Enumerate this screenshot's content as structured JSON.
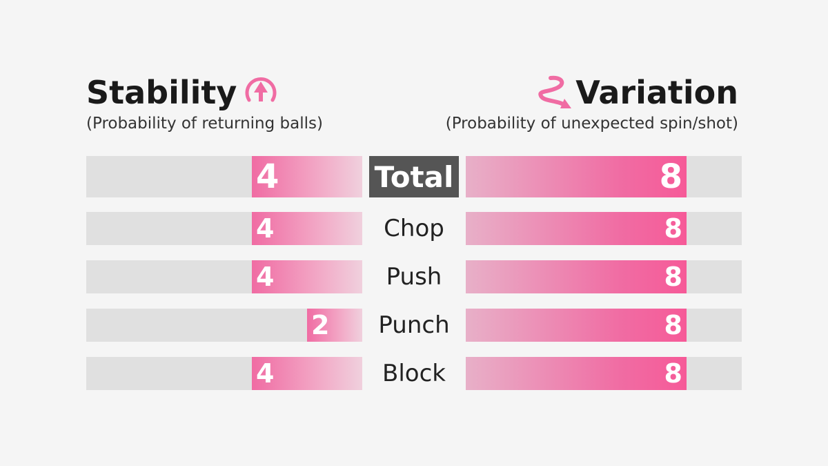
{
  "left_header": {
    "title": "Stability",
    "subtitle": "(Probability of returning balls)",
    "icon": "up-arrow-circle-icon"
  },
  "right_header": {
    "title": "Variation",
    "subtitle": "(Probability of unexpected spin/shot)",
    "icon": "swirl-arrow-icon"
  },
  "colors": {
    "accent": "#f06ca3",
    "track": "#e0e0e0",
    "total_bg": "#555555",
    "background": "#f5f5f5"
  },
  "chart_data": {
    "type": "bar",
    "max": 10,
    "categories": [
      "Total",
      "Chop",
      "Push",
      "Punch",
      "Block"
    ],
    "series": [
      {
        "name": "Stability",
        "values": [
          4,
          4,
          4,
          2,
          4
        ]
      },
      {
        "name": "Variation",
        "values": [
          8,
          8,
          8,
          8,
          8
        ]
      }
    ]
  }
}
